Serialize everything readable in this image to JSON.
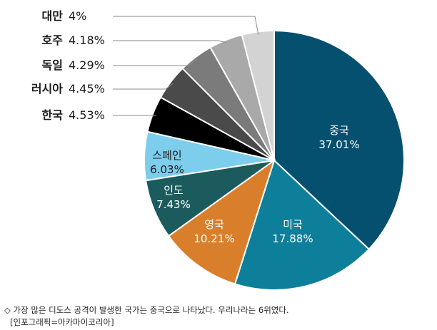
{
  "chart_data": {
    "type": "pie",
    "start": "12 o'clock, clockwise",
    "slices": [
      {
        "label": "중국",
        "value": 37.01,
        "value_label": "37.01%",
        "color": "#05506f",
        "text_color": "#ffffff",
        "label_inside": true
      },
      {
        "label": "미국",
        "value": 17.88,
        "value_label": "17.88%",
        "color": "#0e7f9b",
        "text_color": "#ffffff",
        "label_inside": true
      },
      {
        "label": "영국",
        "value": 10.21,
        "value_label": "10.21%",
        "color": "#d97f2b",
        "text_color": "#ffffff",
        "label_inside": true
      },
      {
        "label": "인도",
        "value": 7.43,
        "value_label": "7.43%",
        "color": "#1c5b5d",
        "text_color": "#ffffff",
        "label_inside": true
      },
      {
        "label": "스페인",
        "value": 6.03,
        "value_label": "6.03%",
        "color": "#7dcdec",
        "text_color": "#1a1a1a",
        "label_inside": true
      },
      {
        "label": "한국",
        "value": 4.53,
        "value_label": "4.53%",
        "color": "#000000",
        "text_color": "#1a1a1a",
        "label_inside": false
      },
      {
        "label": "러시아",
        "value": 4.45,
        "value_label": "4.45%",
        "color": "#4a4a4a",
        "text_color": "#1a1a1a",
        "label_inside": false
      },
      {
        "label": "독일",
        "value": 4.29,
        "value_label": "4.29%",
        "color": "#7b7b7b",
        "text_color": "#1a1a1a",
        "label_inside": false
      },
      {
        "label": "호주",
        "value": 4.18,
        "value_label": "4.18%",
        "color": "#a9a9a9",
        "text_color": "#1a1a1a",
        "label_inside": false
      },
      {
        "label": "대만",
        "value": 4,
        "value_label": "4%",
        "color": "#d3d3d3",
        "text_color": "#1a1a1a",
        "label_inside": false
      }
    ]
  },
  "caption": "◇ 가장 많은 디도스 공격이 발생한 국가는 중국으로 나타났다. 우리나라는 6위였다.",
  "source": "[인포그래픽=아카마이코리아]"
}
